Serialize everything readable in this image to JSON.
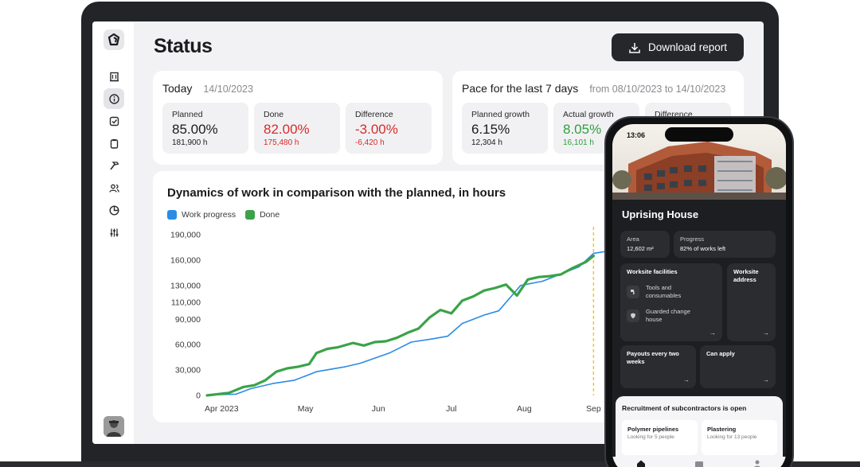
{
  "page": {
    "title": "Status"
  },
  "toolbar": {
    "download_label": "Download report"
  },
  "sidebar": {
    "icons": [
      "logo-icon",
      "building-icon",
      "info-icon",
      "check-square-icon",
      "clipboard-icon",
      "hammer-icon",
      "users-icon",
      "pie-chart-icon",
      "sliders-icon"
    ],
    "active": "info-icon"
  },
  "today": {
    "title": "Today",
    "date": "14/10/2023",
    "metrics": [
      {
        "label": "Planned",
        "value": "85.00%",
        "sub": "181,900 h",
        "tone": "neutral"
      },
      {
        "label": "Done",
        "value": "82.00%",
        "sub": "175,480 h",
        "tone": "red"
      },
      {
        "label": "Difference",
        "value": "-3.00%",
        "sub": "-6,420 h",
        "tone": "red"
      }
    ]
  },
  "pace": {
    "title": "Pace for the last 7 days",
    "range": "from 08/10/2023 to 14/10/2023",
    "metrics": [
      {
        "label": "Planned growth",
        "value": "6.15%",
        "sub": "12,304 h",
        "tone": "neutral"
      },
      {
        "label": "Actual growth",
        "value": "8.05%",
        "sub": "16,101 h",
        "tone": "green"
      },
      {
        "label": "Difference",
        "value": "",
        "sub": "",
        "tone": "green"
      }
    ]
  },
  "chart_data": {
    "type": "line",
    "title": "Dynamics of work in comparison with the planned, in hours",
    "ylim": [
      0,
      190000
    ],
    "y_ticks": [
      0,
      30000,
      60000,
      90000,
      110000,
      130000,
      160000,
      190000
    ],
    "y_tick_labels": [
      "0",
      "30,000",
      "60,000",
      "90,000",
      "110,000",
      "130,000",
      "160,000",
      "190,000"
    ],
    "x_tick_labels": [
      "Apr 2023",
      "May",
      "Jun",
      "Jul",
      "Aug",
      "Sep"
    ],
    "x_ticks": [
      0.2,
      1.35,
      2.35,
      3.35,
      4.35,
      5.3
    ],
    "xlim": [
      0,
      5.7
    ],
    "marker_x": 5.3,
    "grid": false,
    "legend": "top-left",
    "colors": {
      "work": "#2b8be6",
      "done": "#3aa348",
      "marker": "#f2c230"
    },
    "series": [
      {
        "name": "Work progress",
        "x": [
          0,
          0.4,
          0.6,
          0.9,
          1.2,
          1.5,
          1.9,
          2.1,
          2.5,
          2.8,
          3.1,
          3.3,
          3.5,
          3.8,
          4.0,
          4.3,
          4.6,
          4.9,
          5.1,
          5.3,
          5.6,
          5.7
        ],
        "y": [
          500,
          1500,
          8000,
          14000,
          18000,
          28000,
          34000,
          38000,
          50000,
          63000,
          67000,
          70000,
          85000,
          95000,
          100000,
          130000,
          135000,
          145000,
          152000,
          168000,
          172000,
          175000
        ]
      },
      {
        "name": "Done",
        "x": [
          0,
          0.3,
          0.5,
          0.65,
          0.8,
          0.95,
          1.1,
          1.25,
          1.4,
          1.5,
          1.65,
          1.8,
          2.0,
          2.15,
          2.3,
          2.45,
          2.6,
          2.75,
          2.9,
          3.05,
          3.2,
          3.35,
          3.5,
          3.65,
          3.8,
          3.95,
          4.1,
          4.25,
          4.4,
          4.55,
          4.7,
          4.85,
          5.0,
          5.1,
          5.2,
          5.3
        ],
        "y": [
          0,
          3000,
          10000,
          12000,
          18000,
          28000,
          32000,
          34000,
          37000,
          50000,
          55000,
          57000,
          62000,
          59000,
          63000,
          64000,
          68000,
          74000,
          79000,
          92000,
          101000,
          97000,
          112000,
          117000,
          124000,
          127000,
          131000,
          118000,
          137000,
          140000,
          141000,
          143000,
          150000,
          154000,
          158000,
          165000
        ]
      }
    ]
  },
  "phone": {
    "time": "13:06",
    "project_title": "Uprising House",
    "area_label": "Area",
    "area_value": "12,602 m²",
    "progress_label": "Progress",
    "progress_value": "82% of works left",
    "facilities_title": "Worksite facilities",
    "facility_1": "Tools and consumables",
    "facility_2": "Guarded change house",
    "address_title": "Worksite address",
    "payouts_title": "Payouts every two weeks",
    "apply_title": "Can apply",
    "recruit_title": "Recruitment of subcontractors is open",
    "jobs": [
      {
        "title": "Polymer pipelines",
        "sub": "Looking for 5 people"
      },
      {
        "title": "Plastering",
        "sub": "Looking for 13 people"
      }
    ],
    "nav_icons": [
      "home-icon",
      "wallet-icon",
      "profile-icon"
    ]
  }
}
